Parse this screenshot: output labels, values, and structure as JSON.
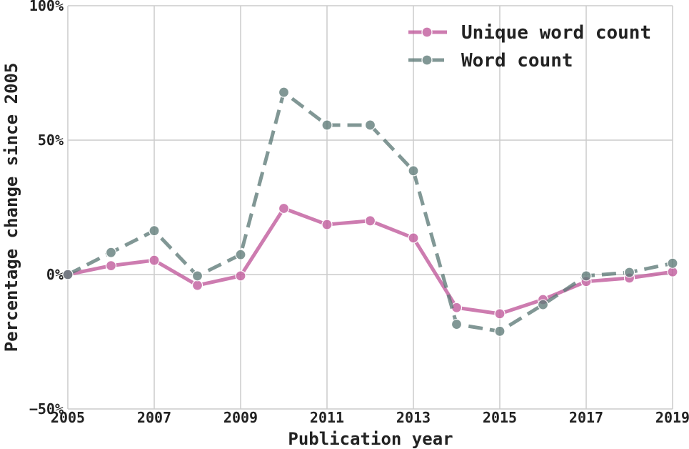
{
  "chart_data": {
    "type": "line",
    "xlabel": "Publication year",
    "ylabel": "Percentage change since 2005",
    "x": [
      2005,
      2006,
      2007,
      2008,
      2009,
      2010,
      2011,
      2012,
      2013,
      2014,
      2015,
      2016,
      2017,
      2018,
      2019
    ],
    "xlim": [
      2005,
      2019
    ],
    "ylim": [
      -50,
      100
    ],
    "xticks": [
      "2005",
      "2007",
      "2009",
      "2011",
      "2013",
      "2015",
      "2017",
      "2019"
    ],
    "yticks": [
      "100%",
      "50%",
      "0%",
      "−50%"
    ],
    "grid": true,
    "legend_position": "top-right",
    "series": [
      {
        "name": "Unique word count",
        "color": "#c0589a",
        "style": "solid",
        "values": [
          0,
          3.3,
          5.3,
          -4,
          -0.5,
          24.6,
          18.6,
          20,
          13.6,
          -12.3,
          -14.6,
          -9.3,
          -2.6,
          -1.3,
          1.0
        ]
      },
      {
        "name": "Word count",
        "color": "#5e7b78",
        "style": "dashed",
        "values": [
          0,
          8.2,
          16.3,
          -0.5,
          7.4,
          67.8,
          55.6,
          55.6,
          38.6,
          -18.5,
          -21.1,
          -11.2,
          -0.5,
          0.8,
          4.2
        ]
      }
    ]
  }
}
